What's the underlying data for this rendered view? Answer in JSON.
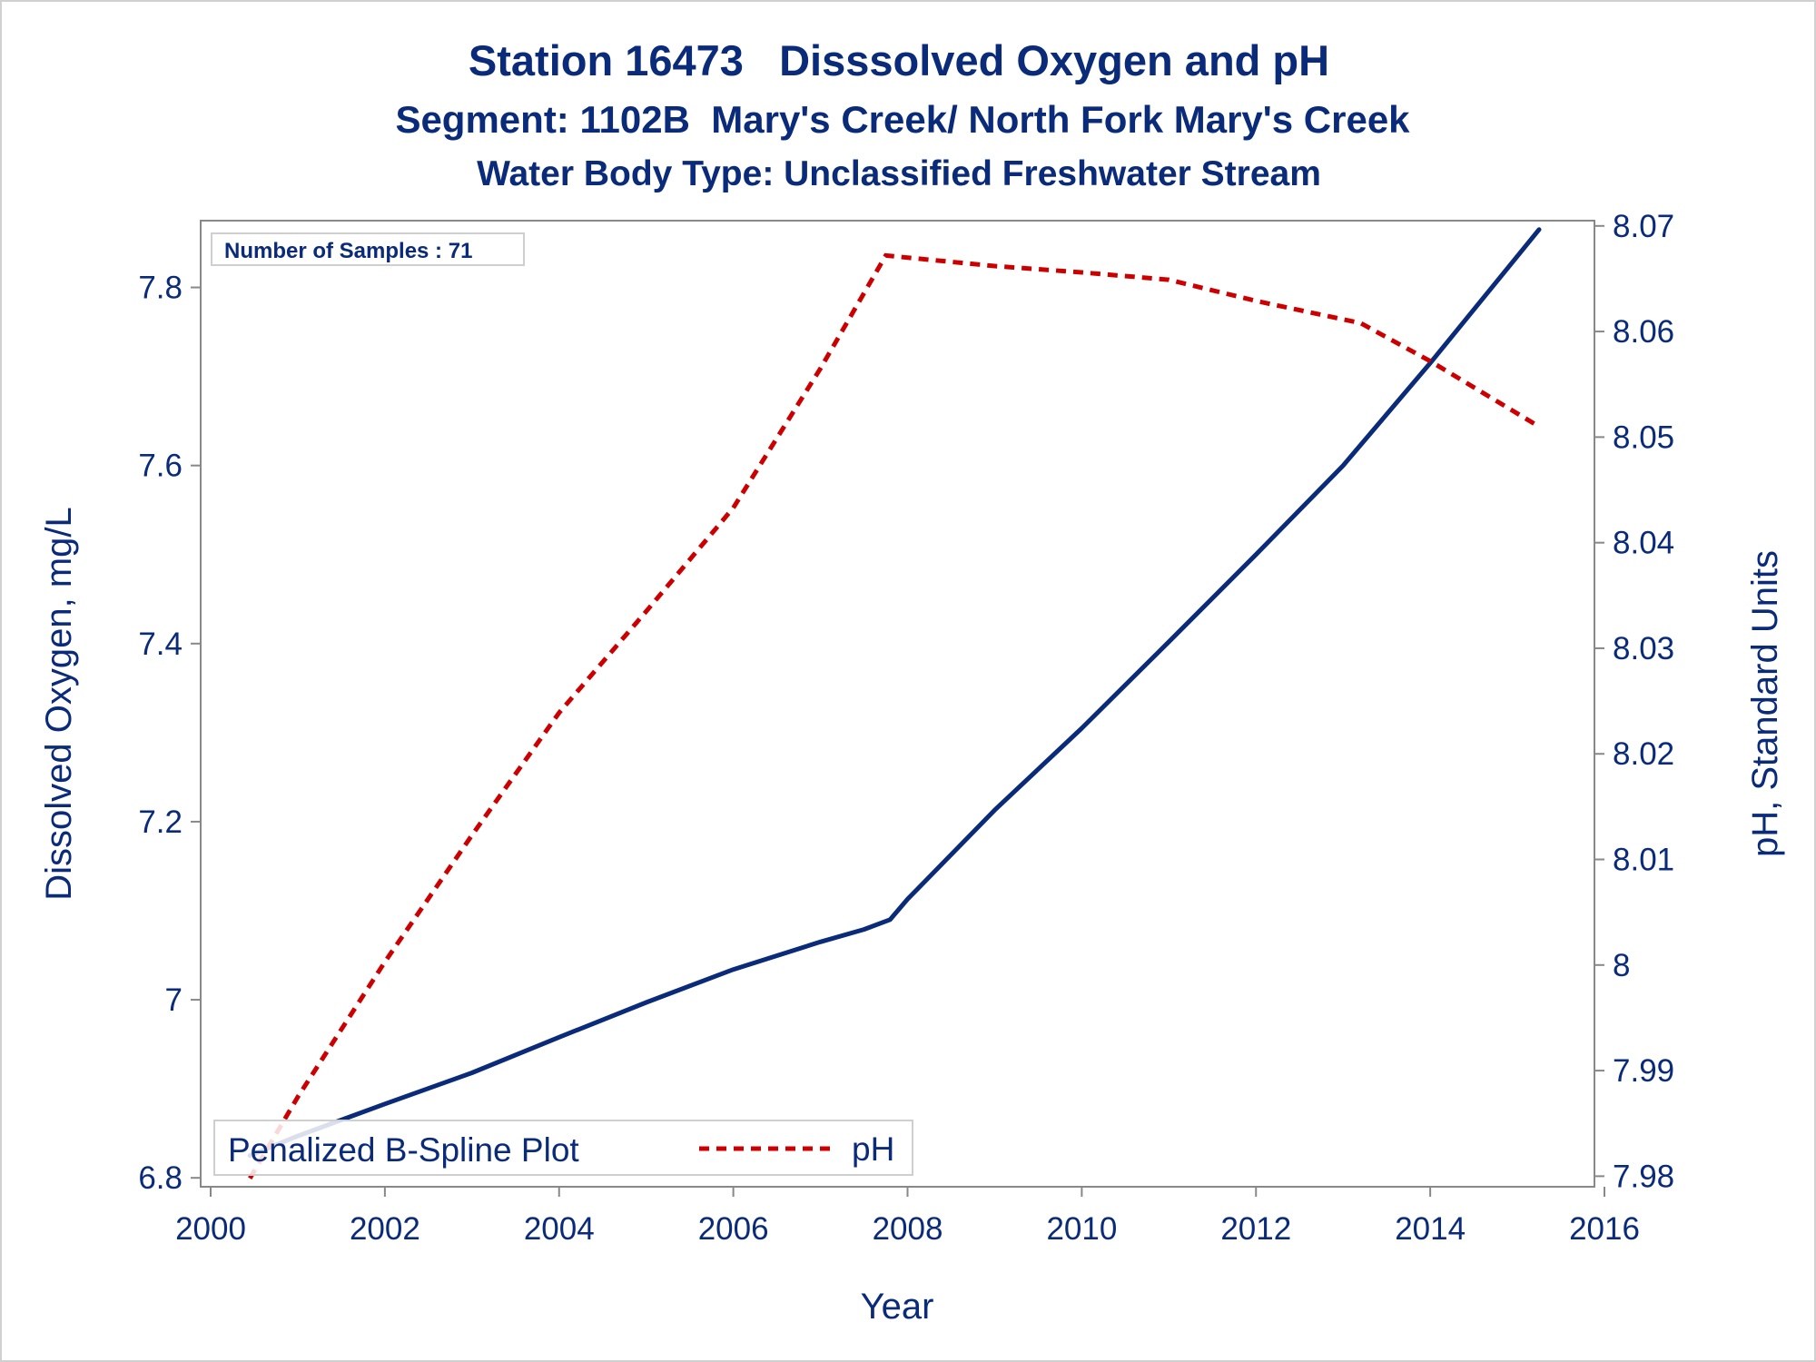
{
  "titles": {
    "line1": "Station 16473   Disssolved Oxygen and pH",
    "line2": "Segment: 1102B  Mary's Creek/ North Fork Mary's Creek",
    "line3": "Water Body Type: Unclassified Freshwater Stream"
  },
  "inset_label": "Number of Samples : 71",
  "legend": {
    "title": "Penalized B-Spline Plot",
    "entries": [
      {
        "label": "pH",
        "color": "#cc0000",
        "style": "dashed"
      }
    ]
  },
  "colors": {
    "text": "#0a2a7a",
    "do_line": "#0a2a7a",
    "ph_line": "#cc0000",
    "axis": "#888888"
  },
  "chart_data": {
    "type": "line",
    "xlabel": "Year",
    "ylabel": "Dissolved Oxygen, mg/L",
    "y2label": "pH, Standard Units",
    "xlim": [
      2000,
      2016
    ],
    "ylim": [
      6.79,
      7.875
    ],
    "y2lim": [
      7.979,
      8.0705
    ],
    "xticks": [
      2000,
      2002,
      2004,
      2006,
      2008,
      2010,
      2012,
      2014,
      2016
    ],
    "yticks": [
      6.8,
      7,
      7.2,
      7.4,
      7.6,
      7.8
    ],
    "yticklabels": [
      "6.8",
      "7",
      "7.2",
      "7.4",
      "7.6",
      "7.8"
    ],
    "y2ticks": [
      7.98,
      7.99,
      8,
      8.01,
      8.02,
      8.03,
      8.04,
      8.05,
      8.06,
      8.07
    ],
    "y2ticklabels": [
      "7.98",
      "7.99",
      "8",
      "8.01",
      "8.02",
      "8.03",
      "8.04",
      "8.05",
      "8.06",
      "8.07"
    ],
    "grid": false,
    "legend_position": "bottom-left",
    "series": [
      {
        "axis": "left",
        "x": [
          2000.45,
          2001.0,
          2002.0,
          2003.0,
          2004.0,
          2005.0,
          2006.0,
          2007.0,
          2007.5,
          2007.8,
          2008.0,
          2009.0,
          2010.0,
          2011.0,
          2012.0,
          2013.0,
          2014.0,
          2015.25
        ],
        "y": [
          6.825,
          6.847,
          6.883,
          6.918,
          6.958,
          6.997,
          7.034,
          7.065,
          7.079,
          7.09,
          7.113,
          7.213,
          7.305,
          7.402,
          7.5,
          7.6,
          7.715,
          7.865
        ]
      },
      {
        "name": "pH",
        "axis": "right",
        "x": [
          2000.45,
          2001.0,
          2002.0,
          2003.0,
          2004.0,
          2005.0,
          2006.0,
          2007.0,
          2007.75,
          2009.0,
          2010.0,
          2011.0,
          2012.0,
          2013.2,
          2014.0,
          2015.25
        ],
        "y": [
          7.9798,
          7.9875,
          8.0003,
          8.0123,
          8.0239,
          8.0335,
          8.0433,
          8.0565,
          8.0672,
          8.0662,
          8.0656,
          8.0649,
          8.0629,
          8.0608,
          8.0572,
          8.051
        ]
      }
    ]
  }
}
